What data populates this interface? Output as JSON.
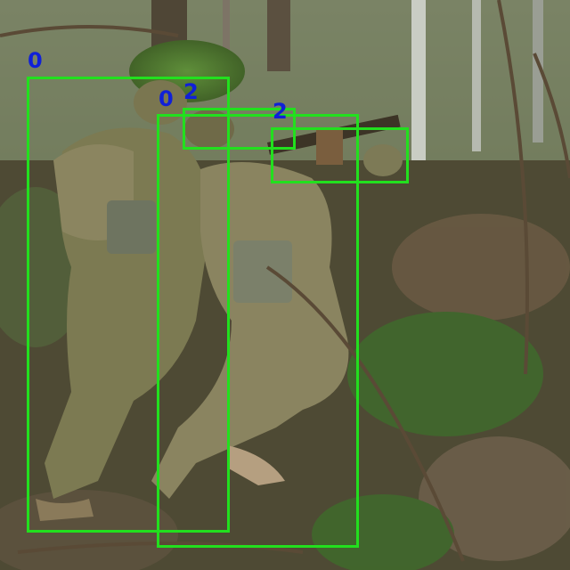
{
  "detections": [
    {
      "label": "0"
    },
    {
      "label": "0"
    },
    {
      "label": "2"
    },
    {
      "label": "2"
    }
  ],
  "colors": {
    "box": "#22e01e",
    "label": "#1020d8"
  }
}
